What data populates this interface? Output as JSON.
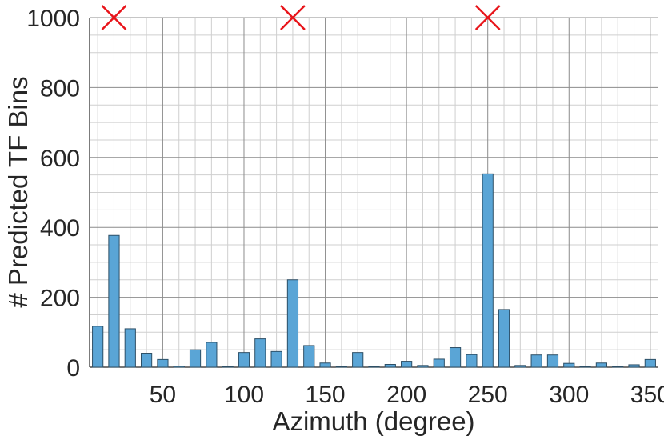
{
  "chart_data": {
    "type": "bar",
    "xlabel": "Azimuth (degree)",
    "ylabel": "# Predicted TF Bins",
    "xlim": [
      5,
      355
    ],
    "ylim": [
      0,
      1000
    ],
    "x_ticks": [
      50,
      100,
      150,
      200,
      250,
      300,
      350
    ],
    "y_ticks": [
      0,
      200,
      400,
      600,
      800,
      1000
    ],
    "grid": true,
    "colors": {
      "bar": "#5aa5d6",
      "bar_edge": "#2d4f66",
      "marker": "#e8141a"
    },
    "x": [
      10,
      20,
      30,
      40,
      50,
      60,
      70,
      80,
      90,
      100,
      110,
      120,
      130,
      140,
      150,
      160,
      170,
      180,
      190,
      200,
      210,
      220,
      230,
      240,
      250,
      260,
      270,
      280,
      290,
      300,
      310,
      320,
      330,
      340,
      350
    ],
    "values": [
      117,
      377,
      110,
      40,
      22,
      3,
      50,
      71,
      1,
      42,
      81,
      45,
      250,
      62,
      12,
      0,
      42,
      1,
      8,
      17,
      5,
      23,
      56,
      36,
      553,
      165,
      5,
      35,
      35,
      11,
      2,
      12,
      2,
      7,
      22
    ],
    "true_source_markers": [
      {
        "x": 20,
        "y": 1000
      },
      {
        "x": 130,
        "y": 1000
      },
      {
        "x": 250,
        "y": 1000
      }
    ]
  }
}
